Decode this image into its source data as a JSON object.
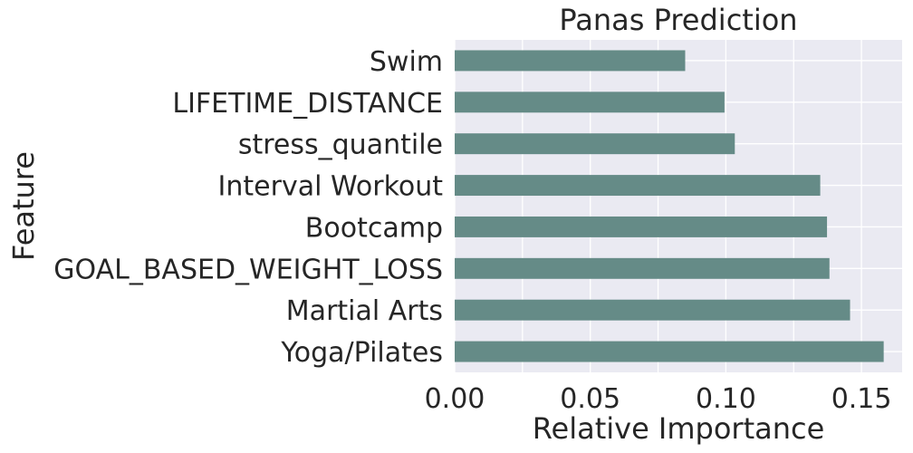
{
  "chart_data": {
    "type": "bar",
    "orientation": "horizontal",
    "title": "Panas Prediction",
    "xlabel": "Relative Importance",
    "ylabel": "Feature",
    "categories": [
      "Swim",
      "LIFETIME_DISTANCE",
      "stress_quantile",
      "Interval Workout",
      "Bootcamp",
      "GOAL_BASED_WEIGHT_LOSS",
      "Martial Arts",
      "Yoga/Pilates"
    ],
    "values": [
      0.085,
      0.0995,
      0.1033,
      0.1348,
      0.1373,
      0.1382,
      0.1458,
      0.1582
    ],
    "xlim": [
      0,
      0.165
    ],
    "xticks": [
      0.0,
      0.05,
      0.1,
      0.15
    ],
    "xtick_labels": [
      "0.00",
      "0.05",
      "0.10",
      "0.15"
    ],
    "grid": true,
    "bar_color": "#658b87",
    "background_color": "#eaeaf2",
    "grid_color": "#ffffff"
  }
}
